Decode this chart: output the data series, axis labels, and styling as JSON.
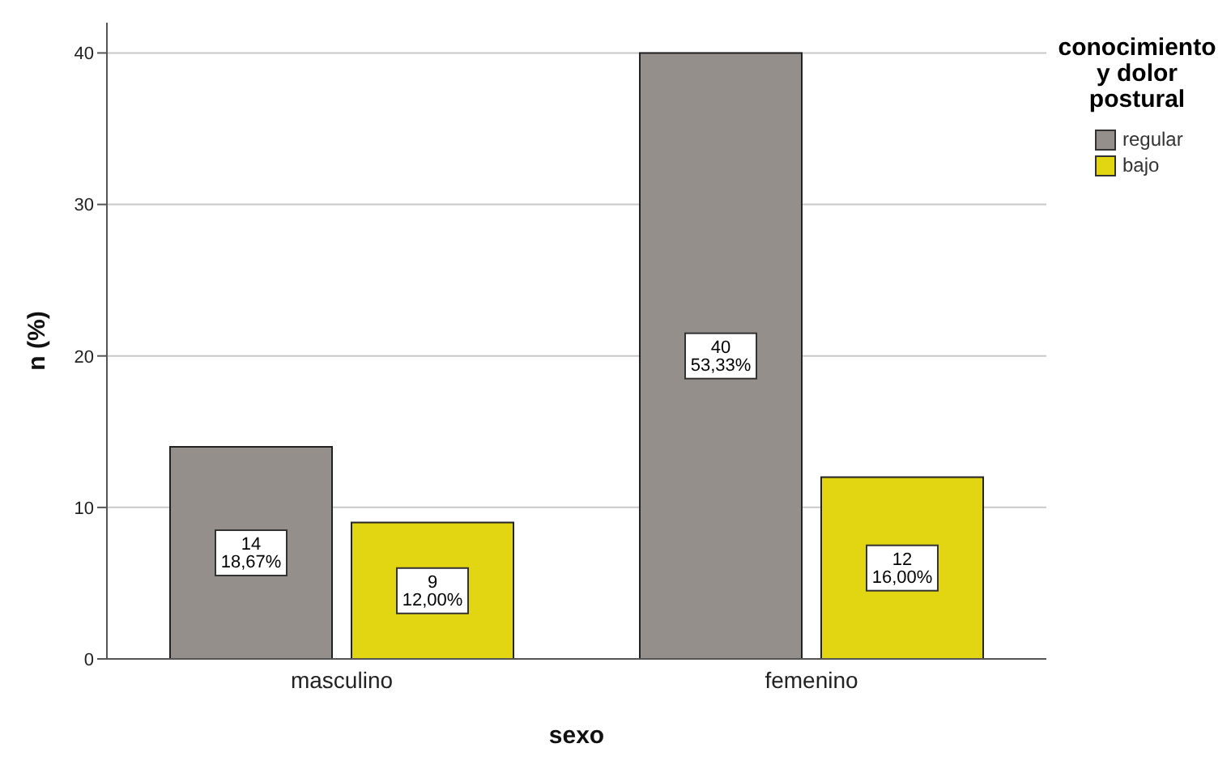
{
  "chart_data": {
    "type": "bar",
    "xlabel": "sexo",
    "ylabel": "n (%)",
    "legend_title": "conocimiento y dolor postural",
    "categories": [
      "masculino",
      "femenino"
    ],
    "series": [
      {
        "name": "regular",
        "color": "#958f8c",
        "values": [
          14,
          40
        ],
        "value_labels": [
          "14\n18,67%",
          "40\n53,33%"
        ]
      },
      {
        "name": "bajo",
        "color": "#e2d511",
        "values": [
          9,
          12
        ],
        "value_labels": [
          "9\n12,00%",
          "12\n16,00%"
        ]
      }
    ],
    "ylim": [
      0,
      42
    ],
    "yticks": [
      0,
      10,
      20,
      30,
      40
    ],
    "grid": "y",
    "legend": "top right"
  }
}
